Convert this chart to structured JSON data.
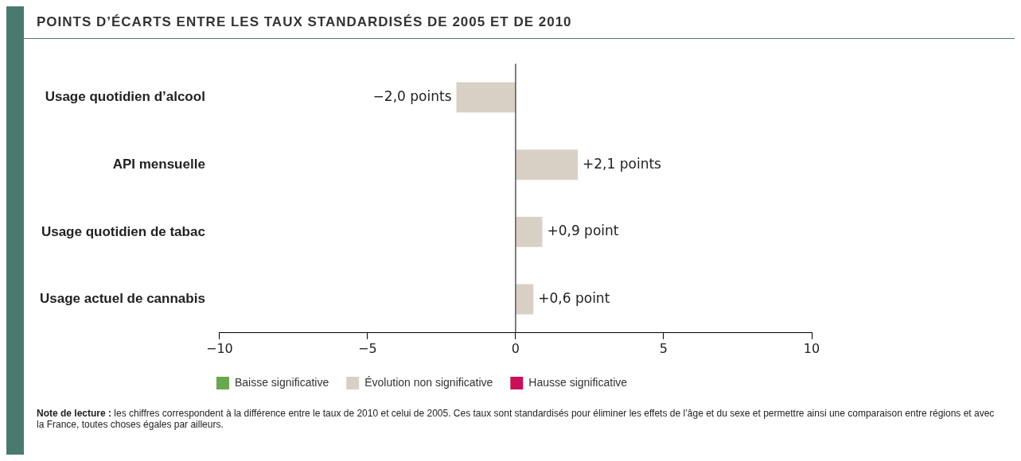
{
  "chart_data": {
    "type": "bar",
    "orientation": "horizontal",
    "title": "POINTS D’ÉCARTS ENTRE LES TAUX STANDARDISÉS DE 2005 ET DE 2010",
    "categories": [
      "Usage quotidien d’alcool",
      "API mensuelle",
      "Usage quotidien de tabac",
      "Usage actuel de cannabis"
    ],
    "series": [
      {
        "name": "Baisse significative",
        "color": "#6aa84f",
        "values": [
          null,
          null,
          null,
          null
        ]
      },
      {
        "name": "Évolution non significative",
        "color": "#d9d0c5",
        "values": [
          -2.0,
          2.1,
          0.9,
          0.6
        ],
        "value_labels": [
          "−2,0 points",
          "+2,1 points",
          "+0,9 point",
          "+0,6 point"
        ]
      },
      {
        "name": "Hausse significative",
        "color": "#c8105a",
        "values": [
          null,
          null,
          null,
          null
        ]
      }
    ],
    "xlim": [
      -10,
      10
    ],
    "xticks": [
      {
        "value": -10,
        "label": "−10"
      },
      {
        "value": -5,
        "label": "−5"
      },
      0,
      5,
      10
    ],
    "legend": "bottom",
    "annotations": [
      "Note de lecture :",
      "les chiffres correspondent à la différence entre le taux de 2010 et celui de 2005. Ces taux sont standardisés pour éliminer les effets de l’âge et du sexe et permettre ainsi une comparaison entre régions et avec la France, toutes choses égales par ailleurs."
    ]
  }
}
